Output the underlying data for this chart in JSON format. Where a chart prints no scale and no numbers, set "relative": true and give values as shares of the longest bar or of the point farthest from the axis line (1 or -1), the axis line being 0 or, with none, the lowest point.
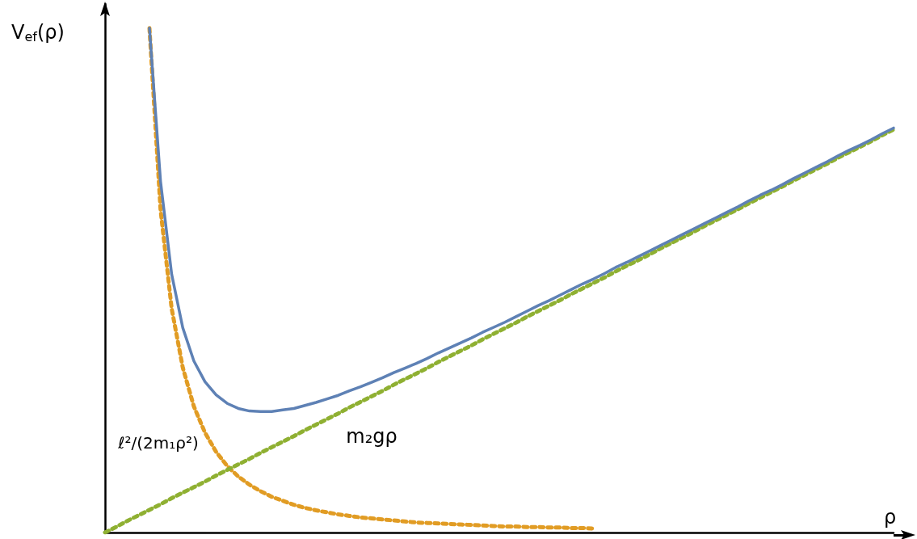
{
  "chart_data": {
    "type": "line",
    "relative": true,
    "xlabel": "ρ",
    "ylabel": "V$_{ef}$(ρ)",
    "marker": "none",
    "categories": [
      null,
      null,
      null,
      null,
      null,
      null,
      null,
      null,
      null,
      null,
      null,
      null,
      null,
      null,
      null,
      null,
      null,
      null,
      null,
      null,
      null,
      null,
      null,
      null,
      null,
      null,
      null,
      null,
      null,
      null,
      null,
      null,
      null,
      null,
      null,
      null,
      null,
      null,
      null,
      null,
      null,
      null,
      null,
      null,
      null,
      null,
      null,
      null,
      null,
      null,
      null,
      null,
      null,
      null,
      null,
      null,
      null,
      null,
      null,
      null,
      null,
      null,
      null,
      null,
      null,
      null,
      null,
      null,
      null,
      null,
      null,
      null
    ],
    "series": [
      {
        "color": "#5e81b5",
        "line_style": "solid",
        "values": [
          null,
          null,
          null,
          null,
          1.0,
          0.696,
          0.512,
          0.406,
          0.34,
          0.299,
          0.273,
          0.256,
          0.246,
          0.241,
          0.24,
          0.24,
          0.243,
          0.246,
          0.252,
          0.258,
          0.265,
          0.272,
          0.281,
          0.289,
          0.298,
          0.307,
          0.317,
          0.326,
          0.335,
          0.345,
          0.356,
          0.366,
          0.376,
          0.386,
          0.397,
          0.407,
          0.417,
          0.428,
          0.439,
          0.45,
          0.46,
          0.471,
          0.482,
          0.493,
          0.503,
          0.514,
          0.526,
          0.536,
          0.547,
          0.558,
          0.569,
          0.58,
          0.591,
          0.602,
          0.613,
          0.624,
          0.635,
          0.646,
          0.658,
          0.669,
          0.679,
          0.69,
          0.702,
          0.713,
          0.724,
          0.735,
          0.747,
          0.758,
          0.768,
          0.779,
          0.791,
          0.802
        ]
      },
      {
        "name": "ℓ²/(2m₁ρ²)",
        "color": "#e19c24",
        "line_style": "dotted",
        "values": [
          null,
          null,
          null,
          null,
          1.0,
          0.64,
          0.444,
          0.327,
          0.25,
          0.198,
          0.16,
          0.132,
          0.111,
          0.095,
          0.082,
          0.071,
          0.063,
          0.055,
          0.049,
          0.044,
          0.04,
          0.036,
          0.033,
          0.03,
          0.028,
          0.026,
          0.024,
          0.022,
          0.02,
          0.019,
          0.018,
          0.017,
          0.016,
          0.015,
          0.014,
          0.013,
          0.012,
          0.012,
          0.011,
          0.011,
          0.01,
          0.01,
          0.009,
          0.009,
          0.008,
          null,
          null,
          null,
          null,
          null,
          null,
          null,
          null,
          null,
          null,
          null,
          null,
          null,
          null,
          null,
          null,
          null,
          null,
          null,
          null,
          null,
          null,
          null,
          null,
          null,
          null,
          null
        ]
      },
      {
        "name": "m₂gρ",
        "color": "#8fb032",
        "line_style": "dotted",
        "values": [
          0,
          0.011,
          0.023,
          0.034,
          0.045,
          0.056,
          0.068,
          0.079,
          0.09,
          0.101,
          0.113,
          0.124,
          0.135,
          0.146,
          0.158,
          0.169,
          0.18,
          0.191,
          0.203,
          0.214,
          0.225,
          0.236,
          0.248,
          0.259,
          0.27,
          0.281,
          0.293,
          0.304,
          0.315,
          0.326,
          0.338,
          0.349,
          0.36,
          0.371,
          0.383,
          0.394,
          0.405,
          0.416,
          0.428,
          0.439,
          0.45,
          0.461,
          0.473,
          0.484,
          0.495,
          0.506,
          0.518,
          0.529,
          0.54,
          0.551,
          0.563,
          0.574,
          0.585,
          0.596,
          0.608,
          0.619,
          0.63,
          0.641,
          0.653,
          0.664,
          0.675,
          0.686,
          0.698,
          0.709,
          0.72,
          0.731,
          0.743,
          0.754,
          0.765,
          0.776,
          0.788,
          0.799
        ]
      }
    ]
  }
}
